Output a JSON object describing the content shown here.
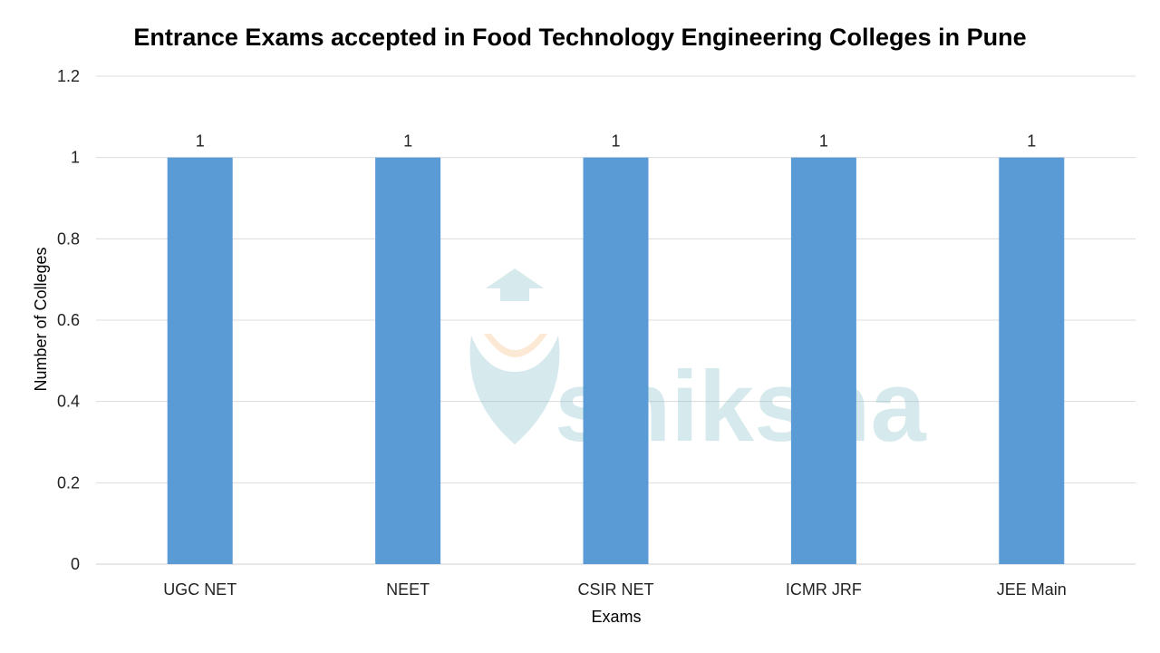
{
  "chart_data": {
    "type": "bar",
    "title": "Entrance Exams accepted in Food Technology Engineering Colleges in Pune",
    "xlabel": "Exams",
    "ylabel": "Number of Colleges",
    "categories": [
      "UGC NET",
      "NEET",
      "CSIR NET",
      "ICMR JRF",
      "JEE Main"
    ],
    "values": [
      1,
      1,
      1,
      1,
      1
    ],
    "data_labels": [
      "1",
      "1",
      "1",
      "1",
      "1"
    ],
    "ylim": [
      0,
      1.2
    ],
    "yticks": [
      "0",
      "0.2",
      "0.4",
      "0.6",
      "0.8",
      "1",
      "1.2"
    ],
    "grid": true,
    "bar_color": "#5b9bd5",
    "watermark": "shiksha"
  }
}
